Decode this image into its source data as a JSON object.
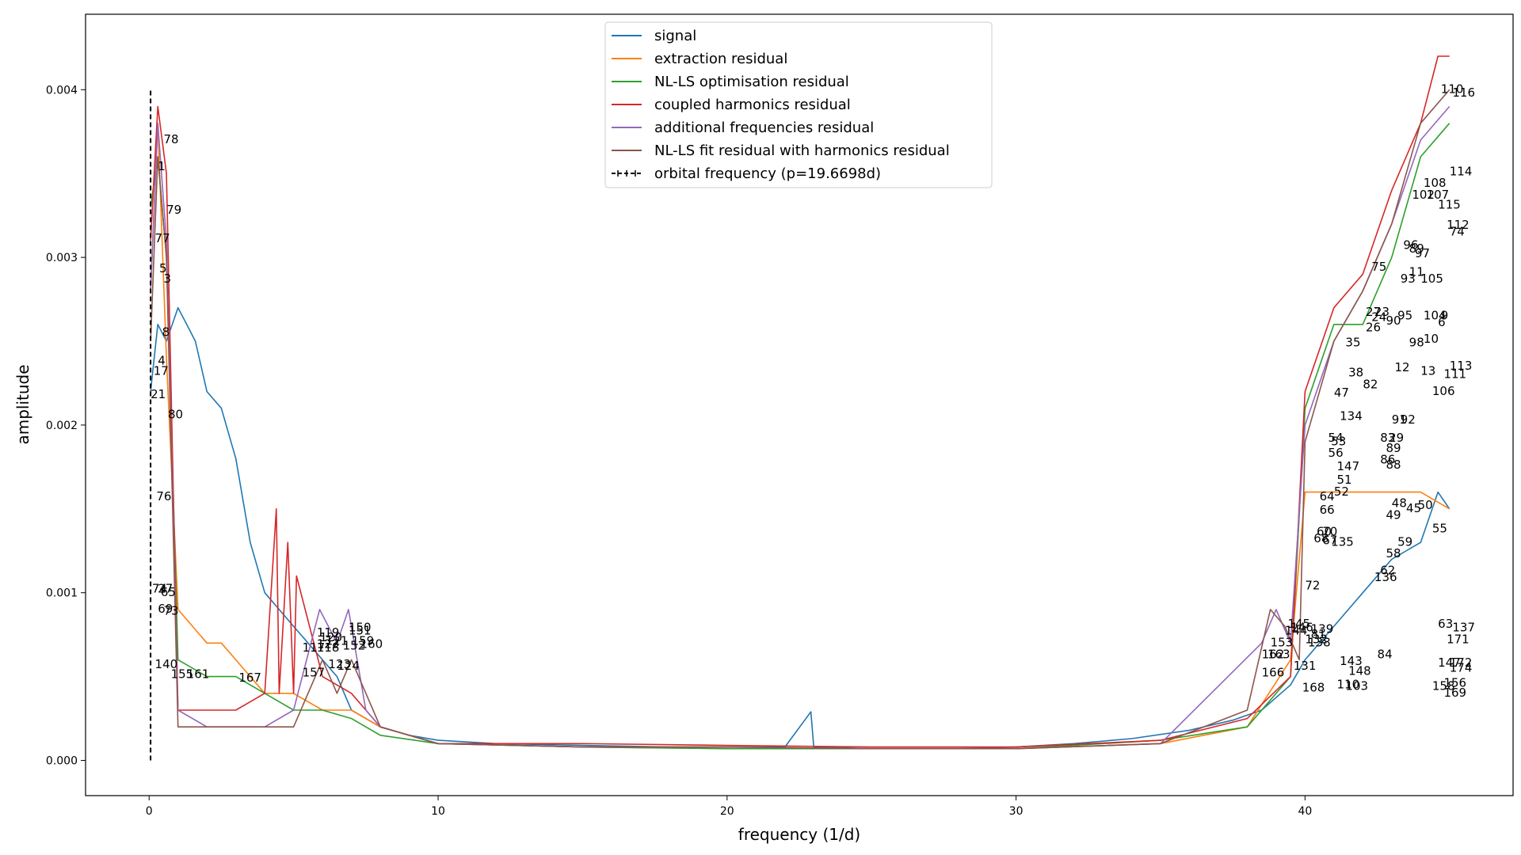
{
  "chart_data": {
    "type": "line",
    "title": "",
    "xlabel": "frequency (1/d)",
    "ylabel": "amplitude",
    "xlim": [
      -2.2,
      47.2
    ],
    "ylim": [
      -0.00021,
      0.00445
    ],
    "xticks": [
      0,
      10,
      20,
      30,
      40
    ],
    "xtick_labels": [
      "0",
      "10",
      "20",
      "30",
      "40"
    ],
    "yticks": [
      0.0,
      0.001,
      0.002,
      0.003,
      0.004
    ],
    "ytick_labels": [
      "0.000",
      "0.001",
      "0.002",
      "0.003",
      "0.004"
    ],
    "grid": false,
    "legend_position": "top-center",
    "series": [
      {
        "name": "signal",
        "color": "#1f77b4",
        "x": [
          0.05,
          0.3,
          0.6,
          1.0,
          1.3,
          1.6,
          2.0,
          2.5,
          3.0,
          3.5,
          4.0,
          4.5,
          5.0,
          5.5,
          6.0,
          6.5,
          7.0,
          7.5,
          8.0,
          9.0,
          10.0,
          12.0,
          15.0,
          18.0,
          20.0,
          22.0,
          22.9,
          23.0,
          25.0,
          28.0,
          30.0,
          32.0,
          34.0,
          36.0,
          37.5,
          38.5,
          39.5,
          40.0,
          41.0,
          42.0,
          43.0,
          44.0,
          44.6,
          45.0
        ],
        "y": [
          0.0022,
          0.0026,
          0.0025,
          0.0027,
          0.0026,
          0.0025,
          0.0022,
          0.0021,
          0.0018,
          0.0013,
          0.001,
          0.0009,
          0.0008,
          0.0007,
          0.0006,
          0.0005,
          0.0003,
          0.00025,
          0.0002,
          0.00015,
          0.00012,
          0.0001,
          9e-05,
          8e-05,
          8e-05,
          8e-05,
          0.00029,
          8e-05,
          7e-05,
          7e-05,
          8e-05,
          0.0001,
          0.00013,
          0.00018,
          0.00024,
          0.0003,
          0.00045,
          0.0006,
          0.0008,
          0.001,
          0.0012,
          0.0013,
          0.0016,
          0.0015
        ]
      },
      {
        "name": "extraction residual",
        "color": "#ff7f0e",
        "x": [
          0.05,
          0.3,
          0.6,
          1.0,
          1.5,
          2.0,
          2.5,
          3.0,
          3.5,
          4.0,
          5.0,
          6.0,
          7.0,
          8.0,
          10.0,
          15.0,
          20.0,
          25.0,
          30.0,
          35.0,
          38.0,
          39.5,
          40.0,
          41.0,
          42.0,
          43.0,
          44.0,
          45.0
        ],
        "y": [
          0.0028,
          0.0038,
          0.0024,
          0.0009,
          0.0008,
          0.0007,
          0.0007,
          0.0006,
          0.0005,
          0.0004,
          0.0004,
          0.0003,
          0.0003,
          0.0002,
          0.0001,
          8e-05,
          7e-05,
          7e-05,
          7e-05,
          0.0001,
          0.0002,
          0.0006,
          0.0016,
          0.0016,
          0.0016,
          0.0016,
          0.0016,
          0.0015
        ]
      },
      {
        "name": "NL-LS optimisation residual",
        "color": "#2ca02c",
        "x": [
          0.05,
          0.3,
          0.6,
          1.0,
          2.0,
          3.0,
          4.0,
          5.0,
          6.0,
          7.0,
          8.0,
          10.0,
          15.0,
          20.0,
          25.0,
          30.0,
          35.0,
          38.0,
          39.5,
          40.0,
          41.0,
          42.0,
          43.0,
          44.0,
          45.0
        ],
        "y": [
          0.0033,
          0.0036,
          0.003,
          0.0006,
          0.0005,
          0.0005,
          0.0004,
          0.0003,
          0.0003,
          0.00025,
          0.00015,
          0.0001,
          8e-05,
          7e-05,
          7e-05,
          7e-05,
          0.00012,
          0.0002,
          0.0005,
          0.0021,
          0.0026,
          0.0026,
          0.003,
          0.0036,
          0.0038
        ]
      },
      {
        "name": "coupled harmonics residual",
        "color": "#d62728",
        "x": [
          0.05,
          0.3,
          0.6,
          1.0,
          2.0,
          3.0,
          4.0,
          4.4,
          4.5,
          4.8,
          5.0,
          5.1,
          6.0,
          7.0,
          8.0,
          10.0,
          15.0,
          20.0,
          25.0,
          30.0,
          35.0,
          38.0,
          39.5,
          40.0,
          41.0,
          42.0,
          43.0,
          44.0,
          44.6,
          45.0
        ],
        "y": [
          0.0031,
          0.0039,
          0.0035,
          0.0003,
          0.0003,
          0.0003,
          0.0004,
          0.0015,
          0.0004,
          0.0013,
          0.0004,
          0.0011,
          0.0005,
          0.0004,
          0.0002,
          0.0001,
          0.0001,
          9e-05,
          8e-05,
          8e-05,
          0.00012,
          0.00025,
          0.0005,
          0.0022,
          0.0027,
          0.0029,
          0.0034,
          0.0038,
          0.0042,
          0.0042
        ]
      },
      {
        "name": "additional frequencies residual",
        "color": "#9467bd",
        "x": [
          0.05,
          0.3,
          0.6,
          1.0,
          2.0,
          3.0,
          4.0,
          5.0,
          5.9,
          6.5,
          6.9,
          7.5,
          8.0,
          10.0,
          15.0,
          20.0,
          25.0,
          30.0,
          35.0,
          38.5,
          39.0,
          39.5,
          40.0,
          41.0,
          42.0,
          43.0,
          44.0,
          45.0
        ],
        "y": [
          0.0028,
          0.0038,
          0.0031,
          0.0003,
          0.0002,
          0.0002,
          0.0002,
          0.0003,
          0.0009,
          0.0007,
          0.0009,
          0.0003,
          0.0002,
          0.0001,
          8e-05,
          8e-05,
          7e-05,
          7e-05,
          0.0001,
          0.0007,
          0.0009,
          0.0007,
          0.002,
          0.0025,
          0.0028,
          0.0032,
          0.0037,
          0.0039
        ]
      },
      {
        "name": "NL-LS fit residual with harmonics residual",
        "color": "#8c564b",
        "x": [
          0.05,
          0.3,
          0.6,
          1.0,
          2.0,
          3.0,
          4.0,
          5.0,
          6.0,
          6.5,
          7.0,
          8.0,
          10.0,
          15.0,
          20.0,
          25.0,
          30.0,
          35.0,
          38.0,
          38.8,
          39.3,
          39.8,
          40.0,
          41.0,
          42.0,
          43.0,
          44.0,
          45.0
        ],
        "y": [
          0.0025,
          0.0036,
          0.003,
          0.0002,
          0.0002,
          0.0002,
          0.0002,
          0.0002,
          0.0006,
          0.0004,
          0.0006,
          0.0002,
          0.0001,
          8e-05,
          8e-05,
          7e-05,
          7e-05,
          0.0001,
          0.0003,
          0.0009,
          0.0008,
          0.0006,
          0.0019,
          0.0025,
          0.0028,
          0.0032,
          0.0038,
          0.004
        ]
      },
      {
        "name": "orbital frequency (p=19.6698d)",
        "color": "#000000",
        "style": "dashed",
        "x": [
          0.0508,
          0.0508
        ],
        "y": [
          0.0,
          0.004
        ]
      }
    ],
    "peak_labels": [
      {
        "t": "78",
        "x": 0.5,
        "y": 0.00368
      },
      {
        "t": "1",
        "x": 0.3,
        "y": 0.00352
      },
      {
        "t": "79",
        "x": 0.6,
        "y": 0.00326
      },
      {
        "t": "77",
        "x": 0.2,
        "y": 0.00309
      },
      {
        "t": "5",
        "x": 0.35,
        "y": 0.00291
      },
      {
        "t": "3",
        "x": 0.5,
        "y": 0.00285
      },
      {
        "t": "8",
        "x": 0.45,
        "y": 0.00253
      },
      {
        "t": "4",
        "x": 0.3,
        "y": 0.00236
      },
      {
        "t": "17",
        "x": 0.15,
        "y": 0.0023
      },
      {
        "t": "21",
        "x": 0.05,
        "y": 0.00216
      },
      {
        "t": "80",
        "x": 0.65,
        "y": 0.00204
      },
      {
        "t": "76",
        "x": 0.25,
        "y": 0.00155
      },
      {
        "t": "74",
        "x": 0.1,
        "y": 0.001
      },
      {
        "t": "27",
        "x": 0.3,
        "y": 0.001
      },
      {
        "t": "65",
        "x": 0.4,
        "y": 0.00098
      },
      {
        "t": "69",
        "x": 0.3,
        "y": 0.00088
      },
      {
        "t": "73",
        "x": 0.5,
        "y": 0.00087
      },
      {
        "t": "140",
        "x": 0.2,
        "y": 0.00055
      },
      {
        "t": "155",
        "x": 0.75,
        "y": 0.00049
      },
      {
        "t": "161",
        "x": 1.3,
        "y": 0.00049
      },
      {
        "t": "167",
        "x": 3.1,
        "y": 0.00047
      },
      {
        "t": "157",
        "x": 5.3,
        "y": 0.0005
      },
      {
        "t": "117",
        "x": 5.3,
        "y": 0.00065
      },
      {
        "t": "118",
        "x": 5.8,
        "y": 0.00065
      },
      {
        "t": "119",
        "x": 5.8,
        "y": 0.00074
      },
      {
        "t": "120",
        "x": 5.9,
        "y": 0.00071
      },
      {
        "t": "121",
        "x": 6.1,
        "y": 0.00069
      },
      {
        "t": "122",
        "x": 5.8,
        "y": 0.00067
      },
      {
        "t": "150",
        "x": 6.9,
        "y": 0.00077
      },
      {
        "t": "151",
        "x": 6.9,
        "y": 0.00075
      },
      {
        "t": "159",
        "x": 7.0,
        "y": 0.00069
      },
      {
        "t": "160",
        "x": 7.3,
        "y": 0.00067
      },
      {
        "t": "152",
        "x": 6.7,
        "y": 0.00066
      },
      {
        "t": "123",
        "x": 6.2,
        "y": 0.00055
      },
      {
        "t": "124",
        "x": 6.5,
        "y": 0.00054
      },
      {
        "t": "110",
        "x": 44.7,
        "y": 0.00398
      },
      {
        "t": "116",
        "x": 45.1,
        "y": 0.00396
      },
      {
        "t": "114",
        "x": 45.0,
        "y": 0.00349
      },
      {
        "t": "108",
        "x": 44.1,
        "y": 0.00342
      },
      {
        "t": "102",
        "x": 43.7,
        "y": 0.00335
      },
      {
        "t": "107",
        "x": 44.2,
        "y": 0.00335
      },
      {
        "t": "115",
        "x": 44.6,
        "y": 0.00329
      },
      {
        "t": "112",
        "x": 44.9,
        "y": 0.00317
      },
      {
        "t": "74",
        "x": 45.0,
        "y": 0.00313
      },
      {
        "t": "96",
        "x": 43.4,
        "y": 0.00305
      },
      {
        "t": "89",
        "x": 43.6,
        "y": 0.00303
      },
      {
        "t": "97",
        "x": 43.8,
        "y": 0.003
      },
      {
        "t": "75",
        "x": 42.3,
        "y": 0.00292
      },
      {
        "t": "11",
        "x": 43.6,
        "y": 0.00289
      },
      {
        "t": "93",
        "x": 43.3,
        "y": 0.00285
      },
      {
        "t": "105",
        "x": 44.0,
        "y": 0.00285
      },
      {
        "t": "27",
        "x": 42.1,
        "y": 0.00265
      },
      {
        "t": "23",
        "x": 42.4,
        "y": 0.00265
      },
      {
        "t": "24",
        "x": 42.3,
        "y": 0.00262
      },
      {
        "t": "26",
        "x": 42.1,
        "y": 0.00256
      },
      {
        "t": "90",
        "x": 42.8,
        "y": 0.0026
      },
      {
        "t": "95",
        "x": 43.2,
        "y": 0.00263
      },
      {
        "t": "104",
        "x": 44.1,
        "y": 0.00263
      },
      {
        "t": "9",
        "x": 44.7,
        "y": 0.00263
      },
      {
        "t": "6",
        "x": 44.6,
        "y": 0.00259
      },
      {
        "t": "10",
        "x": 44.1,
        "y": 0.00249
      },
      {
        "t": "98",
        "x": 43.6,
        "y": 0.00247
      },
      {
        "t": "35",
        "x": 41.4,
        "y": 0.00247
      },
      {
        "t": "12",
        "x": 43.1,
        "y": 0.00232
      },
      {
        "t": "38",
        "x": 41.5,
        "y": 0.00229
      },
      {
        "t": "82",
        "x": 42.0,
        "y": 0.00222
      },
      {
        "t": "47",
        "x": 41.0,
        "y": 0.00217
      },
      {
        "t": "13",
        "x": 44.0,
        "y": 0.0023
      },
      {
        "t": "111",
        "x": 44.8,
        "y": 0.00228
      },
      {
        "t": "113",
        "x": 45.0,
        "y": 0.00233
      },
      {
        "t": "106",
        "x": 44.4,
        "y": 0.00218
      },
      {
        "t": "134",
        "x": 41.2,
        "y": 0.00203
      },
      {
        "t": "91",
        "x": 43.0,
        "y": 0.00201
      },
      {
        "t": "92",
        "x": 43.3,
        "y": 0.00201
      },
      {
        "t": "83",
        "x": 42.6,
        "y": 0.0019
      },
      {
        "t": "29",
        "x": 42.9,
        "y": 0.0019
      },
      {
        "t": "54",
        "x": 40.8,
        "y": 0.0019
      },
      {
        "t": "53",
        "x": 40.9,
        "y": 0.00188
      },
      {
        "t": "56",
        "x": 40.8,
        "y": 0.00181
      },
      {
        "t": "89",
        "x": 42.8,
        "y": 0.00184
      },
      {
        "t": "86",
        "x": 42.6,
        "y": 0.00177
      },
      {
        "t": "88",
        "x": 42.8,
        "y": 0.00174
      },
      {
        "t": "147",
        "x": 41.1,
        "y": 0.00173
      },
      {
        "t": "51",
        "x": 41.1,
        "y": 0.00165
      },
      {
        "t": "52",
        "x": 41.0,
        "y": 0.00158
      },
      {
        "t": "64",
        "x": 40.5,
        "y": 0.00155
      },
      {
        "t": "66",
        "x": 40.5,
        "y": 0.00147
      },
      {
        "t": "48",
        "x": 43.0,
        "y": 0.00151
      },
      {
        "t": "50",
        "x": 43.9,
        "y": 0.0015
      },
      {
        "t": "45",
        "x": 43.5,
        "y": 0.00148
      },
      {
        "t": "49",
        "x": 42.8,
        "y": 0.00144
      },
      {
        "t": "60",
        "x": 40.4,
        "y": 0.00134
      },
      {
        "t": "70",
        "x": 40.6,
        "y": 0.00134
      },
      {
        "t": "68",
        "x": 40.3,
        "y": 0.0013
      },
      {
        "t": "67",
        "x": 40.6,
        "y": 0.00129
      },
      {
        "t": "135",
        "x": 40.9,
        "y": 0.00128
      },
      {
        "t": "55",
        "x": 44.4,
        "y": 0.00136
      },
      {
        "t": "59",
        "x": 43.2,
        "y": 0.00128
      },
      {
        "t": "58",
        "x": 42.8,
        "y": 0.00121
      },
      {
        "t": "62",
        "x": 42.6,
        "y": 0.00111
      },
      {
        "t": "136",
        "x": 42.4,
        "y": 0.00107
      },
      {
        "t": "72",
        "x": 40.0,
        "y": 0.00102
      },
      {
        "t": "63",
        "x": 44.6,
        "y": 0.00079
      },
      {
        "t": "137",
        "x": 45.1,
        "y": 0.00077
      },
      {
        "t": "171",
        "x": 44.9,
        "y": 0.0007
      },
      {
        "t": "145",
        "x": 39.4,
        "y": 0.00079
      },
      {
        "t": "146",
        "x": 39.5,
        "y": 0.00077
      },
      {
        "t": "144",
        "x": 39.3,
        "y": 0.00075
      },
      {
        "t": "139",
        "x": 40.2,
        "y": 0.00076
      },
      {
        "t": "81",
        "x": 40.2,
        "y": 0.00073
      },
      {
        "t": "138",
        "x": 40.1,
        "y": 0.00068
      },
      {
        "t": "132",
        "x": 40.0,
        "y": 0.0007
      },
      {
        "t": "153",
        "x": 38.8,
        "y": 0.00068
      },
      {
        "t": "162",
        "x": 38.5,
        "y": 0.00061
      },
      {
        "t": "163",
        "x": 38.7,
        "y": 0.00061
      },
      {
        "t": "131",
        "x": 39.6,
        "y": 0.00054
      },
      {
        "t": "166",
        "x": 38.5,
        "y": 0.0005
      },
      {
        "t": "84",
        "x": 42.5,
        "y": 0.00061
      },
      {
        "t": "143",
        "x": 41.2,
        "y": 0.00057
      },
      {
        "t": "148",
        "x": 41.5,
        "y": 0.00051
      },
      {
        "t": "168",
        "x": 39.9,
        "y": 0.00041
      },
      {
        "t": "110",
        "x": 41.1,
        "y": 0.00043
      },
      {
        "t": "103",
        "x": 41.4,
        "y": 0.00042
      },
      {
        "t": "147",
        "x": 44.6,
        "y": 0.00056
      },
      {
        "t": "172",
        "x": 45.0,
        "y": 0.00056
      },
      {
        "t": "174",
        "x": 45.0,
        "y": 0.00053
      },
      {
        "t": "156",
        "x": 44.8,
        "y": 0.00044
      },
      {
        "t": "158",
        "x": 44.4,
        "y": 0.00042
      },
      {
        "t": "169",
        "x": 44.8,
        "y": 0.00038
      }
    ]
  }
}
